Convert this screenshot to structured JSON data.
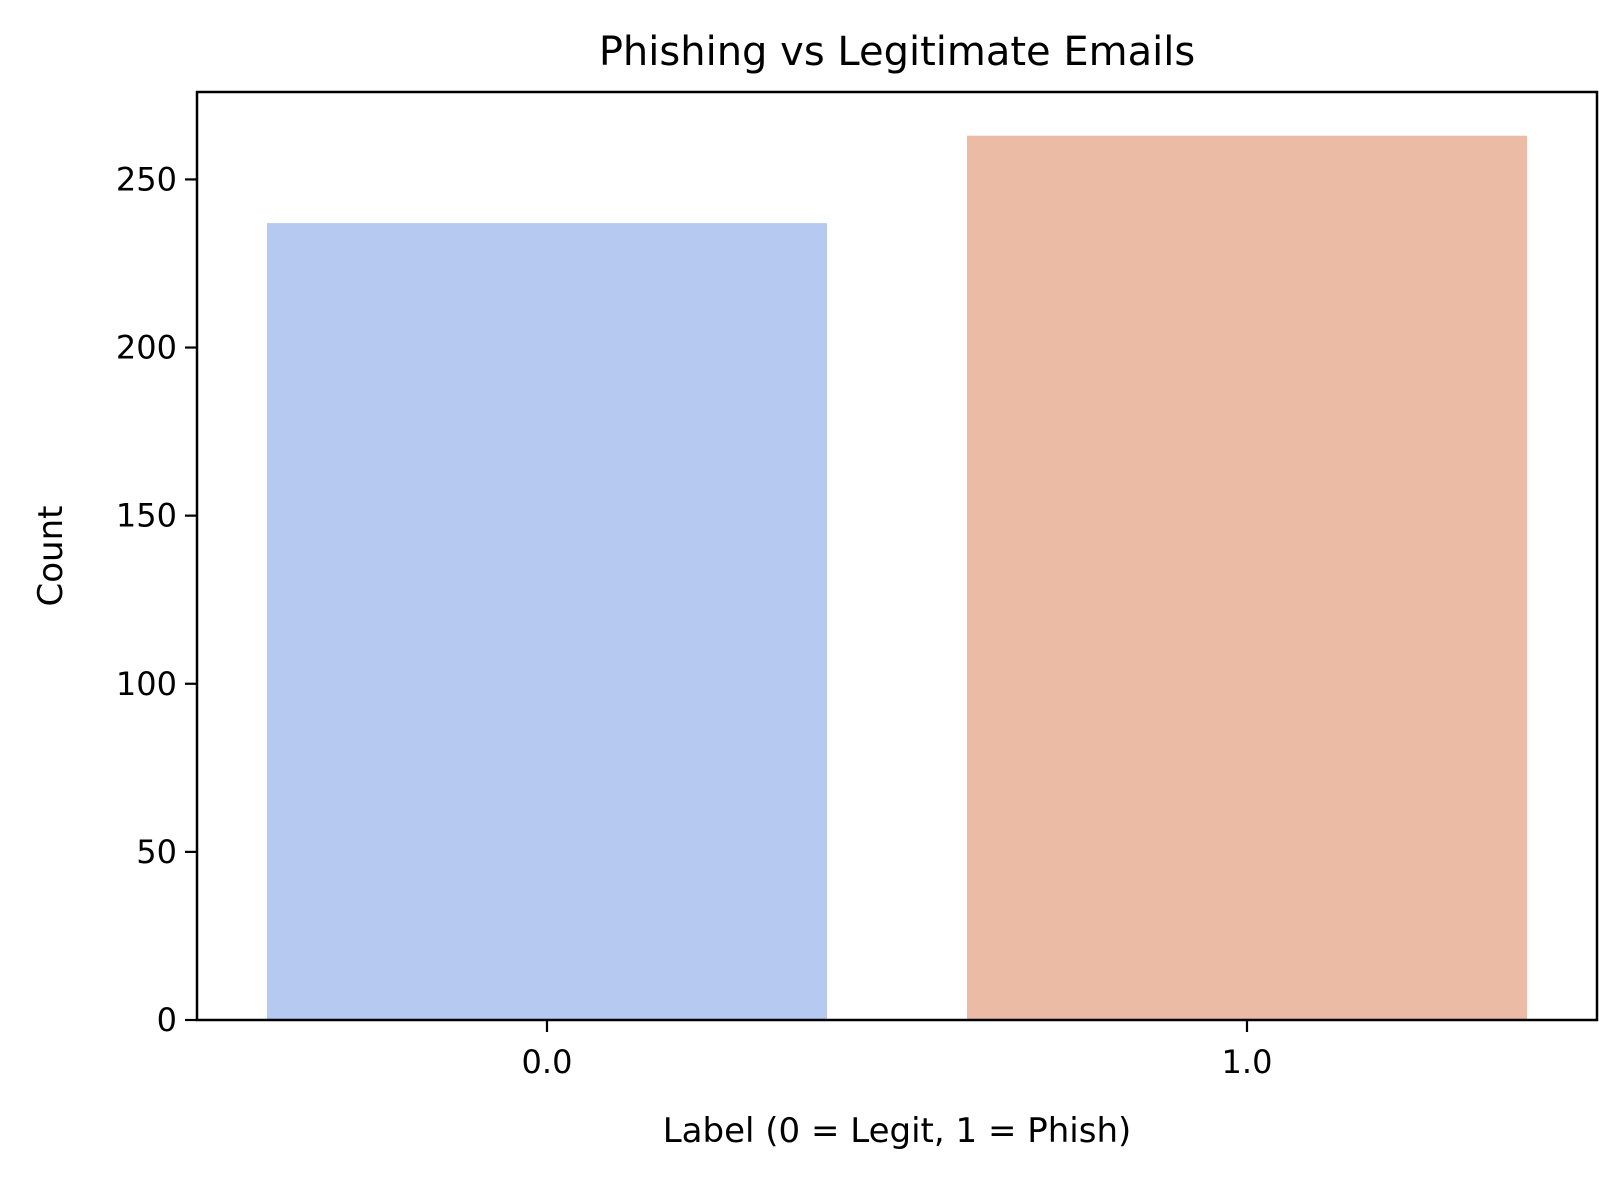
{
  "chart_data": {
    "type": "bar",
    "title": "Phishing vs Legitimate Emails",
    "xlabel": "Label (0 = Legit, 1 = Phish)",
    "ylabel": "Count",
    "categories": [
      "0.0",
      "1.0"
    ],
    "values": [
      237,
      263
    ],
    "colors": [
      "#b5c9f1",
      "#ebbba6"
    ],
    "ylim": [
      0,
      276
    ],
    "yticks": [
      0,
      50,
      100,
      150,
      200,
      250
    ],
    "grid": false,
    "legend": "none"
  }
}
